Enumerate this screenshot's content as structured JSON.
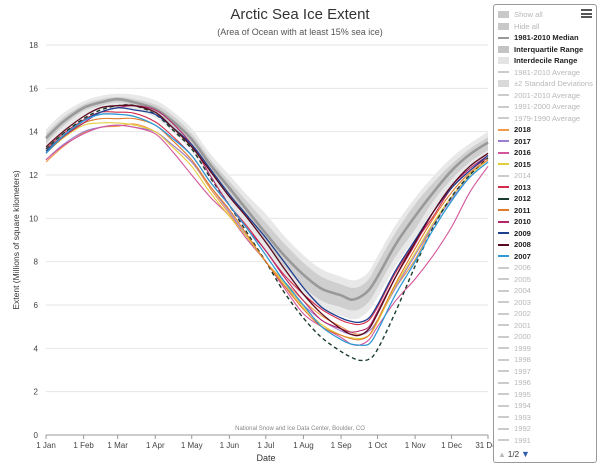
{
  "chart_data": {
    "type": "line",
    "title": "Arctic Sea Ice Extent",
    "subtitle": "(Area of Ocean with at least 15% sea ice)",
    "xlabel": "Date",
    "ylabel": "Extent (Millions of square kilometers)",
    "credit": "National Snow and Ice Data Center, Boulder, CO",
    "xlim": [
      1,
      365
    ],
    "ylim": [
      0,
      18
    ],
    "yticks": [
      0,
      2,
      4,
      6,
      8,
      10,
      12,
      14,
      16,
      18
    ],
    "xticks": [
      {
        "label": "1 Jan",
        "day": 1
      },
      {
        "label": "1 Feb",
        "day": 32
      },
      {
        "label": "1 Mar",
        "day": 60
      },
      {
        "label": "1 Apr",
        "day": 91
      },
      {
        "label": "1 May",
        "day": 121
      },
      {
        "label": "1 Jun",
        "day": 152
      },
      {
        "label": "1 Jul",
        "day": 182
      },
      {
        "label": "1 Aug",
        "day": 213
      },
      {
        "label": "1 Sep",
        "day": 244
      },
      {
        "label": "1 Oct",
        "day": 274
      },
      {
        "label": "1 Nov",
        "day": 305
      },
      {
        "label": "1 Dec",
        "day": 335
      },
      {
        "label": "31 Dec",
        "day": 365
      }
    ],
    "days": [
      1,
      15,
      32,
      46,
      60,
      74,
      91,
      105,
      121,
      136,
      152,
      167,
      182,
      197,
      213,
      228,
      244,
      252,
      259,
      267,
      274,
      289,
      305,
      320,
      335,
      350,
      365
    ],
    "bands": {
      "interdecile": {
        "upper": [
          14.1,
          14.85,
          15.4,
          15.65,
          15.75,
          15.7,
          15.45,
          14.95,
          14.15,
          13.0,
          12.0,
          11.05,
          10.2,
          9.2,
          8.3,
          7.65,
          7.3,
          7.15,
          7.2,
          7.55,
          8.25,
          9.7,
          10.95,
          11.95,
          12.8,
          13.45,
          14.0
        ],
        "lower": [
          13.2,
          14.0,
          14.7,
          15.0,
          15.15,
          15.0,
          14.65,
          14.0,
          13.1,
          11.9,
          10.7,
          9.6,
          8.4,
          7.3,
          6.4,
          5.8,
          5.5,
          5.35,
          5.4,
          5.75,
          6.35,
          7.8,
          9.1,
          10.4,
          11.5,
          12.3,
          12.9
        ]
      },
      "interquartile": {
        "upper": [
          13.9,
          14.65,
          15.25,
          15.5,
          15.6,
          15.5,
          15.25,
          14.75,
          13.9,
          12.75,
          11.7,
          10.75,
          9.8,
          8.85,
          7.95,
          7.3,
          6.95,
          6.8,
          6.85,
          7.2,
          7.9,
          9.35,
          10.65,
          11.65,
          12.5,
          13.2,
          13.75
        ],
        "lower": [
          13.45,
          14.25,
          14.95,
          15.2,
          15.35,
          15.2,
          14.85,
          14.25,
          13.4,
          12.2,
          11.05,
          10.0,
          8.85,
          7.8,
          6.85,
          6.2,
          5.9,
          5.75,
          5.8,
          6.15,
          6.8,
          8.25,
          9.5,
          10.8,
          11.8,
          12.6,
          13.15
        ]
      }
    },
    "series": [
      {
        "name": "1981-2010 Median",
        "color": "#999999",
        "width": 2.6,
        "values": [
          13.7,
          14.45,
          15.1,
          15.35,
          15.5,
          15.35,
          15.05,
          14.5,
          13.65,
          12.5,
          11.4,
          10.35,
          9.3,
          8.3,
          7.4,
          6.75,
          6.45,
          6.25,
          6.35,
          6.7,
          7.3,
          8.8,
          10.1,
          11.2,
          12.2,
          12.95,
          13.5
        ]
      },
      {
        "name": "2018",
        "color": "#f09a4a",
        "width": 1.1,
        "values": [
          12.6,
          13.3,
          13.95,
          14.2,
          14.25,
          14.35,
          14.0,
          13.4,
          12.6,
          11.4,
          10.2,
          9.1,
          8.0,
          7.1,
          6.2,
          5.5,
          5.0,
          4.75,
          4.65,
          4.8,
          5.3,
          6.8,
          8.1,
          9.7,
          10.9,
          11.9,
          12.6
        ]
      },
      {
        "name": "2017",
        "color": "#9a7fd1",
        "width": 1.1,
        "values": [
          12.7,
          13.4,
          14.0,
          14.2,
          14.3,
          14.2,
          14.0,
          13.4,
          12.6,
          11.5,
          10.3,
          9.1,
          8.0,
          6.9,
          6.0,
          5.3,
          4.8,
          4.65,
          4.6,
          4.8,
          5.3,
          6.8,
          8.3,
          9.7,
          10.9,
          11.9,
          12.6
        ]
      },
      {
        "name": "2016",
        "color": "#d4559b",
        "width": 1.1,
        "values": [
          12.7,
          13.35,
          13.9,
          14.2,
          14.3,
          14.2,
          13.9,
          13.1,
          12.0,
          11.0,
          10.1,
          9.0,
          8.0,
          6.8,
          5.6,
          5.0,
          4.5,
          4.2,
          4.15,
          4.4,
          5.0,
          6.2,
          7.2,
          8.3,
          9.6,
          11.2,
          12.4
        ]
      },
      {
        "name": "2015",
        "color": "#e3cd3a",
        "width": 1.1,
        "values": [
          13.0,
          13.7,
          14.3,
          14.4,
          14.4,
          14.3,
          14.0,
          13.3,
          12.4,
          11.2,
          10.1,
          9.1,
          8.0,
          7.0,
          5.9,
          5.1,
          4.6,
          4.5,
          4.45,
          4.6,
          5.2,
          6.9,
          8.4,
          9.8,
          11.0,
          12.0,
          12.7
        ]
      },
      {
        "name": "2013",
        "color": "#d52b4a",
        "width": 1.1,
        "values": [
          13.2,
          13.9,
          14.55,
          14.9,
          14.9,
          14.85,
          14.45,
          13.8,
          12.9,
          11.7,
          10.6,
          9.6,
          8.5,
          7.4,
          6.5,
          5.8,
          5.3,
          5.15,
          5.1,
          5.3,
          5.9,
          7.5,
          8.9,
          10.1,
          11.4,
          12.2,
          12.8
        ]
      },
      {
        "name": "2012",
        "color": "#1a3c2c",
        "width": 1.4,
        "dash": "4,3",
        "values": [
          13.2,
          13.9,
          14.6,
          15.0,
          15.2,
          15.2,
          14.8,
          14.1,
          13.2,
          11.9,
          10.6,
          9.3,
          8.0,
          6.6,
          5.4,
          4.5,
          3.85,
          3.6,
          3.45,
          3.5,
          3.95,
          5.7,
          7.8,
          9.6,
          11.0,
          12.0,
          12.8
        ]
      },
      {
        "name": "2011",
        "color": "#e07b2c",
        "width": 1.1,
        "values": [
          13.1,
          13.8,
          14.4,
          14.6,
          14.6,
          14.6,
          14.3,
          13.6,
          12.7,
          11.5,
          10.4,
          9.2,
          8.0,
          6.9,
          5.8,
          5.0,
          4.6,
          4.45,
          4.4,
          4.6,
          5.3,
          7.0,
          8.6,
          10.0,
          11.2,
          12.1,
          12.7
        ]
      },
      {
        "name": "2010",
        "color": "#b3276b",
        "width": 1.1,
        "values": [
          13.0,
          13.75,
          14.4,
          14.9,
          15.1,
          15.2,
          15.0,
          14.4,
          13.4,
          12.0,
          10.6,
          9.5,
          8.5,
          7.3,
          6.2,
          5.3,
          4.9,
          4.75,
          4.8,
          5.0,
          5.7,
          7.3,
          8.8,
          10.3,
          11.5,
          12.3,
          12.9
        ]
      },
      {
        "name": "2009",
        "color": "#1f3f8f",
        "width": 1.3,
        "values": [
          13.1,
          13.8,
          14.5,
          14.9,
          15.1,
          15.0,
          14.8,
          14.2,
          13.4,
          12.3,
          11.1,
          10.1,
          9.1,
          8.0,
          6.8,
          5.9,
          5.4,
          5.25,
          5.2,
          5.4,
          6.0,
          7.6,
          9.0,
          10.3,
          11.4,
          12.2,
          12.9
        ]
      },
      {
        "name": "2008",
        "color": "#5a0a1e",
        "width": 1.3,
        "values": [
          13.3,
          14.0,
          14.7,
          15.1,
          15.2,
          15.2,
          14.9,
          14.2,
          13.3,
          12.2,
          11.0,
          10.0,
          8.9,
          7.7,
          6.5,
          5.6,
          4.9,
          4.65,
          4.6,
          4.9,
          5.6,
          7.3,
          8.9,
          10.3,
          11.5,
          12.4,
          13.0
        ]
      },
      {
        "name": "2007",
        "color": "#2f9ad6",
        "width": 1.3,
        "values": [
          13.0,
          13.8,
          14.5,
          14.8,
          14.8,
          14.7,
          14.3,
          13.7,
          12.9,
          11.7,
          10.6,
          9.5,
          8.3,
          7.1,
          6.0,
          5.0,
          4.4,
          4.2,
          4.15,
          4.2,
          4.8,
          6.5,
          8.0,
          9.5,
          10.8,
          11.9,
          12.6
        ]
      }
    ]
  },
  "legend": {
    "page_indicator": "1/2",
    "items": [
      {
        "label": "Show all",
        "symbol": "box",
        "color": "#c8c8c8",
        "active": false,
        "interactable": true
      },
      {
        "label": "Hide all",
        "symbol": "box",
        "color": "#c8c8c8",
        "active": false,
        "interactable": true
      },
      {
        "label": "1981-2010 Median",
        "symbol": "line",
        "color": "#999999",
        "active": true,
        "interactable": true
      },
      {
        "label": "Interquartile Range",
        "symbol": "box",
        "color": "#c4c4c4",
        "active": true,
        "interactable": true
      },
      {
        "label": "Interdecile Range",
        "symbol": "box",
        "color": "#e4e4e4",
        "active": true,
        "interactable": true
      },
      {
        "label": "1981-2010 Average",
        "symbol": "line",
        "color": "#cccccc",
        "active": false,
        "interactable": true
      },
      {
        "label": "±2 Standard Deviations",
        "symbol": "box",
        "color": "#d9d9d9",
        "active": false,
        "interactable": true
      },
      {
        "label": "2001-2010 Average",
        "symbol": "line",
        "color": "#cccccc",
        "active": false,
        "interactable": true
      },
      {
        "label": "1991-2000 Average",
        "symbol": "line",
        "color": "#cccccc",
        "active": false,
        "interactable": true
      },
      {
        "label": "1979-1990 Average",
        "symbol": "line",
        "color": "#cccccc",
        "active": false,
        "interactable": true
      },
      {
        "label": "2018",
        "symbol": "line",
        "color": "#f09a4a",
        "active": true,
        "interactable": true
      },
      {
        "label": "2017",
        "symbol": "line",
        "color": "#9a7fd1",
        "active": true,
        "interactable": true
      },
      {
        "label": "2016",
        "symbol": "line",
        "color": "#d4559b",
        "active": true,
        "interactable": true
      },
      {
        "label": "2015",
        "symbol": "line",
        "color": "#e3cd3a",
        "active": true,
        "interactable": true
      },
      {
        "label": "2014",
        "symbol": "line",
        "color": "#cccccc",
        "active": false,
        "interactable": true
      },
      {
        "label": "2013",
        "symbol": "line",
        "color": "#d52b4a",
        "active": true,
        "interactable": true
      },
      {
        "label": "2012",
        "symbol": "dash",
        "color": "#1a3c2c",
        "active": true,
        "interactable": true
      },
      {
        "label": "2011",
        "symbol": "line",
        "color": "#e07b2c",
        "active": true,
        "interactable": true
      },
      {
        "label": "2010",
        "symbol": "line",
        "color": "#b3276b",
        "active": true,
        "interactable": true
      },
      {
        "label": "2009",
        "symbol": "line",
        "color": "#1f3f8f",
        "active": true,
        "interactable": true
      },
      {
        "label": "2008",
        "symbol": "line",
        "color": "#5a0a1e",
        "active": true,
        "interactable": true
      },
      {
        "label": "2007",
        "symbol": "line",
        "color": "#2f9ad6",
        "active": true,
        "interactable": true
      },
      {
        "label": "2006",
        "symbol": "line",
        "color": "#cccccc",
        "active": false,
        "interactable": true
      },
      {
        "label": "2005",
        "symbol": "line",
        "color": "#cccccc",
        "active": false,
        "interactable": true
      },
      {
        "label": "2004",
        "symbol": "line",
        "color": "#cccccc",
        "active": false,
        "interactable": true
      },
      {
        "label": "2003",
        "symbol": "line",
        "color": "#cccccc",
        "active": false,
        "interactable": true
      },
      {
        "label": "2002",
        "symbol": "line",
        "color": "#cccccc",
        "active": false,
        "interactable": true
      },
      {
        "label": "2001",
        "symbol": "line",
        "color": "#cccccc",
        "active": false,
        "interactable": true
      },
      {
        "label": "2000",
        "symbol": "line",
        "color": "#cccccc",
        "active": false,
        "interactable": true
      },
      {
        "label": "1999",
        "symbol": "line",
        "color": "#cccccc",
        "active": false,
        "interactable": true
      },
      {
        "label": "1998",
        "symbol": "line",
        "color": "#cccccc",
        "active": false,
        "interactable": true
      },
      {
        "label": "1997",
        "symbol": "line",
        "color": "#cccccc",
        "active": false,
        "interactable": true
      },
      {
        "label": "1996",
        "symbol": "line",
        "color": "#cccccc",
        "active": false,
        "interactable": true
      },
      {
        "label": "1995",
        "symbol": "line",
        "color": "#cccccc",
        "active": false,
        "interactable": true
      },
      {
        "label": "1994",
        "symbol": "line",
        "color": "#cccccc",
        "active": false,
        "interactable": true
      },
      {
        "label": "1993",
        "symbol": "line",
        "color": "#cccccc",
        "active": false,
        "interactable": true
      },
      {
        "label": "1992",
        "symbol": "line",
        "color": "#cccccc",
        "active": false,
        "interactable": true
      },
      {
        "label": "1991",
        "symbol": "line",
        "color": "#cccccc",
        "active": false,
        "interactable": true
      }
    ]
  }
}
